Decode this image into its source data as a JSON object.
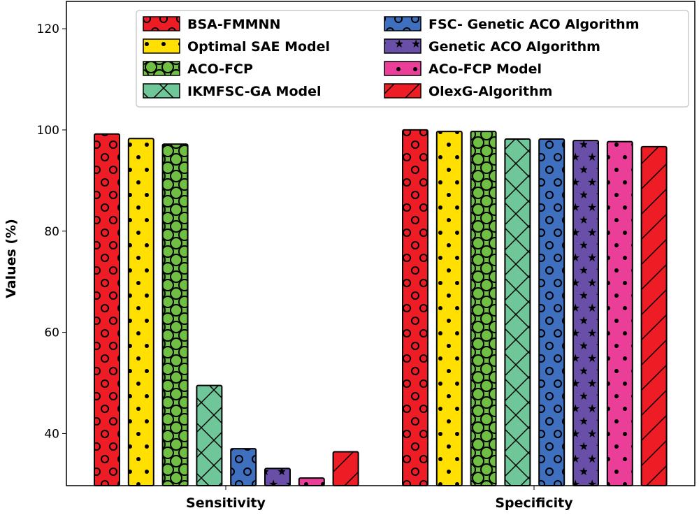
{
  "chart_data": {
    "type": "bar",
    "title": "",
    "xlabel": "",
    "ylabel": "Values (%)",
    "ylim": [
      29.7,
      125.4
    ],
    "yticks": [
      40,
      60,
      80,
      100,
      120
    ],
    "categories": [
      "Sensitivity",
      "Specificity"
    ],
    "legend_position": "top",
    "series": [
      {
        "name": "BSA-FMMNN",
        "color": "#ee1c25",
        "pattern": "circles",
        "values": [
          99.2,
          100.0
        ]
      },
      {
        "name": "Optimal SAE Model",
        "color": "#ffe000",
        "pattern": "dots",
        "values": [
          98.3,
          99.7
        ]
      },
      {
        "name": "ACO-FCP",
        "color": "#6fbf44",
        "pattern": "big-circles",
        "values": [
          97.2,
          99.7
        ]
      },
      {
        "name": "IKMFSC-GA Model",
        "color": "#6ec699",
        "pattern": "crosshatch",
        "values": [
          49.5,
          98.2
        ]
      },
      {
        "name": "FSC- Genetic ACO Algorithm",
        "color": "#3f6fbf",
        "pattern": "circles",
        "values": [
          37.0,
          98.2
        ]
      },
      {
        "name": "Genetic ACO Algorithm",
        "color": "#6a4fa8",
        "pattern": "stars",
        "values": [
          33.1,
          97.9
        ]
      },
      {
        "name": "ACo-FCP Model",
        "color": "#ea3e98",
        "pattern": "dots",
        "values": [
          31.2,
          97.7
        ]
      },
      {
        "name": "OlexG-Algorithm",
        "color": "#ee1c25",
        "pattern": "diagonal",
        "values": [
          36.4,
          96.7
        ]
      }
    ]
  }
}
